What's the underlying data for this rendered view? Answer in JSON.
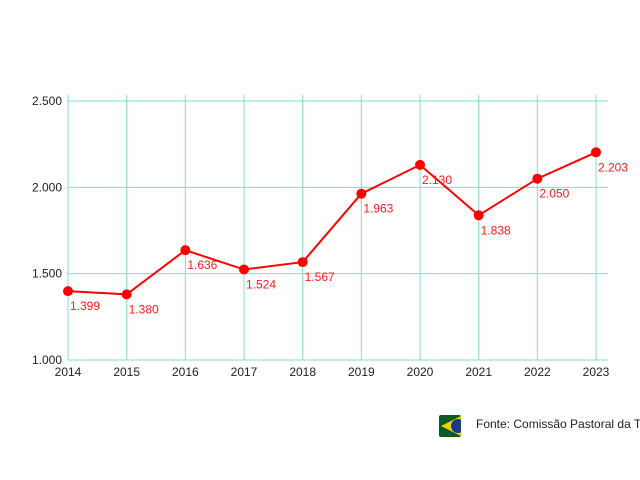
{
  "chart_data": {
    "type": "line",
    "title": "",
    "xlabel": "",
    "ylabel": "",
    "x": [
      "2014",
      "2015",
      "2016",
      "2017",
      "2018",
      "2019",
      "2020",
      "2021",
      "2022",
      "2023"
    ],
    "series": [
      {
        "values": [
          1399,
          1380,
          1636,
          1524,
          1567,
          1963,
          2130,
          1838,
          2050,
          2203
        ],
        "labels": [
          "1.399",
          "1.380",
          "1.636",
          "1.524",
          "1.567",
          "1.963",
          "2.130",
          "1.838",
          "2.050",
          "2.203"
        ],
        "color": "#ff0000"
      }
    ],
    "ylim": [
      1000,
      2500
    ],
    "yticks": [
      1000,
      1500,
      2000,
      2500
    ],
    "ytick_labels": [
      "1.000",
      "1.500",
      "2.000",
      "2.500"
    ],
    "grid": true,
    "grid_color": "#7fe0c0",
    "legend": "none"
  },
  "footer": {
    "source": "Fonte: Comissão Pastoral da Terra",
    "logo_icon": "brazil-flag-icon"
  }
}
